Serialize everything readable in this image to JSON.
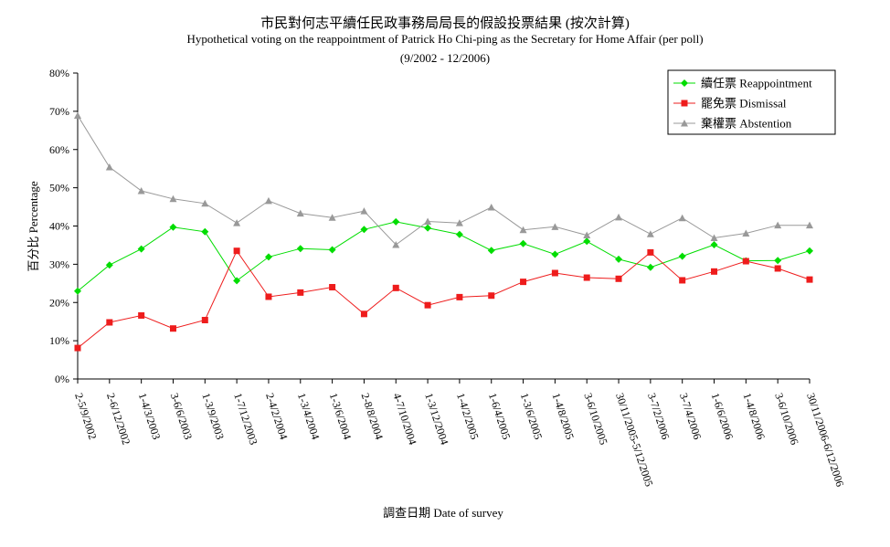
{
  "chart_data": {
    "type": "line",
    "title": "市民對何志平續任民政事務局局長的假設投票結果 (按次計算)",
    "subtitle": "Hypothetical voting on the reappointment of Patrick Ho Chi-ping as the Secretary for Home Affair (per poll)",
    "period": "(9/2002 - 12/2006)",
    "xlabel": "調查日期 Date of survey",
    "ylabel": "百分比 Percentage",
    "ylim": [
      0,
      80
    ],
    "yticks": [
      "0%",
      "10%",
      "20%",
      "30%",
      "40%",
      "50%",
      "60%",
      "70%",
      "80%"
    ],
    "legend_position": "top-right",
    "categories": [
      "2-5/9/2002",
      "2-6/12/2002",
      "1-4/3/2003",
      "3-6/6/2003",
      "1-3/9/2003",
      "1-7/12/2003",
      "2-4/2/2004",
      "1-3/4/2004",
      "1-3/6/2004",
      "2-8/8/2004",
      "4-7/10/2004",
      "1-3/12/2004",
      "1-4/2/2005",
      "1-6/4/2005",
      "1-3/6/2005",
      "1-4/8/2005",
      "3-6/10/2005",
      "30/11/2005-5/12/2005",
      "3-7/2/2006",
      "3-7/4/2006",
      "1-6/6/2006",
      "1-4/8/2006",
      "3-6/10/2006",
      "30/11/2006-6/12/2006"
    ],
    "series": [
      {
        "name": "續任票 Reappointment",
        "color": "#00dd00",
        "marker": "diamond",
        "values": [
          23.0,
          29.8,
          34.0,
          39.7,
          38.5,
          25.7,
          31.9,
          34.1,
          33.8,
          39.1,
          41.1,
          39.5,
          37.8,
          33.6,
          35.4,
          32.6,
          36.0,
          31.3,
          29.2,
          32.1,
          35.1,
          30.9,
          31.0,
          33.5
        ]
      },
      {
        "name": "罷免票 Dismissal",
        "color": "#ee1c1c",
        "marker": "square",
        "values": [
          8.1,
          14.8,
          16.6,
          13.2,
          15.4,
          33.5,
          21.5,
          22.6,
          24.0,
          17.0,
          23.8,
          19.3,
          21.4,
          21.8,
          25.4,
          27.7,
          26.5,
          26.2,
          33.1,
          25.8,
          28.1,
          30.8,
          28.9,
          26.0
        ]
      },
      {
        "name": "棄權票 Abstention",
        "color": "#999999",
        "marker": "triangle",
        "values": [
          68.9,
          55.4,
          49.2,
          47.1,
          45.9,
          40.8,
          46.6,
          43.3,
          42.2,
          43.9,
          35.1,
          41.2,
          40.8,
          44.9,
          39.0,
          39.8,
          37.6,
          42.3,
          37.9,
          42.1,
          36.9,
          38.1,
          40.2,
          40.2
        ]
      }
    ]
  }
}
